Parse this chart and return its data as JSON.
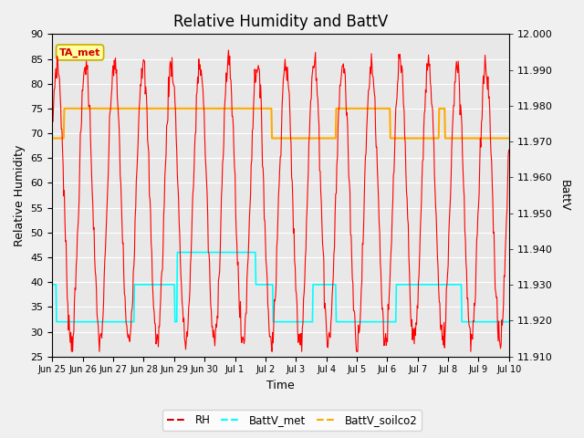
{
  "title": "Relative Humidity and BattV",
  "ylabel_left": "Relative Humidity",
  "ylabel_right": "BattV",
  "xlabel": "Time",
  "annotation_text": "TA_met",
  "ylim_left": [
    25,
    90
  ],
  "ylim_right": [
    11.91,
    12.0
  ],
  "yticks_left": [
    25,
    30,
    35,
    40,
    45,
    50,
    55,
    60,
    65,
    70,
    75,
    80,
    85,
    90
  ],
  "yticks_right": [
    11.91,
    11.92,
    11.93,
    11.94,
    11.95,
    11.96,
    11.97,
    11.98,
    11.99,
    12.0
  ],
  "xtick_labels": [
    "Jun 25",
    "Jun 26",
    "Jun 27",
    "Jun 28",
    "Jun 29",
    "Jun 30",
    "Jul 1",
    "Jul 2",
    "Jul 3",
    "Jul 4",
    "Jul 5",
    "Jul 6",
    "Jul 7",
    "Jul 8",
    "Jul 9",
    "Jul 10"
  ],
  "figure_bg": "#f0f0f0",
  "plot_bg": "#e8e8e8",
  "grid_color": "#ffffff",
  "rh_color": "#ff0000",
  "battv_met_color": "#00ffff",
  "battv_soilco2_color": "#ffaa00",
  "legend_rh_color": "#cc0000",
  "title_fontsize": 12,
  "axis_fontsize": 9,
  "tick_fontsize": 8,
  "figwidth": 6.4,
  "figheight": 4.8,
  "dpi": 100
}
